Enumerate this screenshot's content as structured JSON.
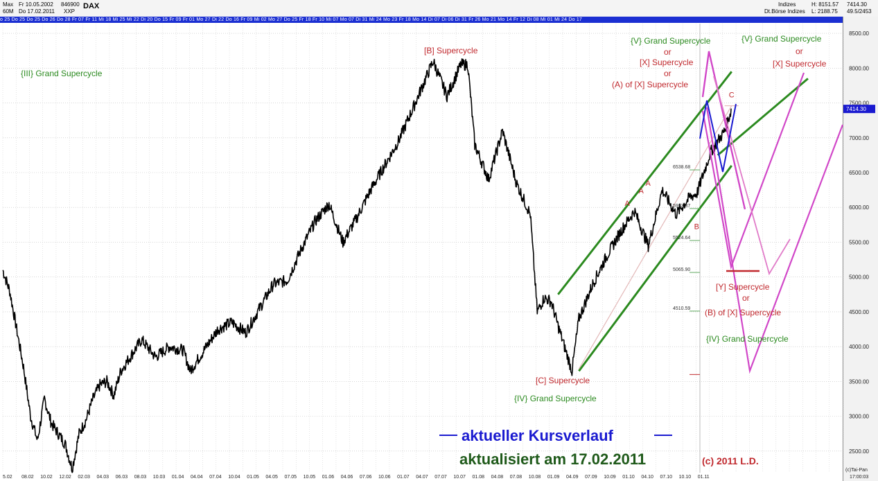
{
  "header": {
    "max_label": "Max",
    "max_date": "Fr 10.05.2002",
    "max_code": "846900",
    "symbol": "DAX",
    "period_label": "60M",
    "period_date": "Do 17.02.2011",
    "exchange_code": "XXP",
    "category": "Indizes",
    "exchange": "Dt.Börse Indizes",
    "high_label": "H: 8151.57",
    "low_label": "L: 2188.75",
    "last": "7414.30",
    "change": "49.5/2453"
  },
  "date_strip": "o 25 Do 25 Do 25 Do 26 Do 28 Fr 07 Fr 11 Mi 18 Mi 25 Mi 22 Di 20 Do 15 Fr 09 Fr 01 Mo 27 Di 22 Do 16 Fr 09 Mi 02 Mo 27 Do 25 Fr 18 Fr 10 Mi 07 Mo 07 Di 31 Mi 24 Mo 23 Fr 18 Mo 14 Di 07 Di 06 Di 31 Fr 26 Mo 21 Mo 14 Fr 12 Di 08 Mi 01 Mi 24 Do 17",
  "colors": {
    "price": "#000000",
    "channel": "#2b8a1f",
    "green_text": "#2b8a1f",
    "red_text": "#c0282d",
    "magenta": "#d147c8",
    "pink": "#e07ac8",
    "blue": "#1a1ad0",
    "date_strip_bg": "#1b2fd2",
    "last_price_box": "#1a1ad0"
  },
  "chart_data": {
    "type": "line",
    "title": "DAX",
    "ylim": [
      2190,
      8640
    ],
    "y_ticks": [
      2500,
      3000,
      3500,
      4000,
      4500,
      5000,
      5500,
      6000,
      6500,
      7000,
      7500,
      8000,
      8500
    ],
    "y_tick_labels": [
      "2500.00",
      "3000.00",
      "3500.00",
      "4000.00",
      "4500.00",
      "5000.00",
      "5500.00",
      "6000.00",
      "6500.00",
      "7000.00",
      "7500.00",
      "8000.00",
      "8500.00"
    ],
    "last_price": 7414.3,
    "last_price_label": "7414.30",
    "x_range": [
      "2002-05",
      "2012-06"
    ],
    "x_tick_labels": [
      "5.02",
      "08.02",
      "10.02",
      "12.02",
      "02.03",
      "04.03",
      "06.03",
      "08.03",
      "10.03",
      "01.04",
      "04.04",
      "07.04",
      "10.04",
      "01.05",
      "04.05",
      "07.05",
      "10.05",
      "01.06",
      "04.06",
      "07.06",
      "10.06",
      "01.07",
      "04.07",
      "07.07",
      "10.07",
      "01.08",
      "04.08",
      "07.08",
      "10.08",
      "01.09",
      "04.09",
      "07.09",
      "10.09",
      "01.10",
      "04.10",
      "07.10",
      "10.10",
      "01.11"
    ],
    "price_series": [
      [
        "2002-05",
        5100
      ],
      [
        "2002-06",
        4800
      ],
      [
        "2002-07",
        4250
      ],
      [
        "2002-08",
        3700
      ],
      [
        "2002-09",
        3000
      ],
      [
        "2002-10",
        2650
      ],
      [
        "2002-11",
        3250
      ],
      [
        "2002-12",
        2900
      ],
      [
        "2003-01",
        2750
      ],
      [
        "2003-02",
        2600
      ],
      [
        "2003-03",
        2250
      ],
      [
        "2003-04",
        2750
      ],
      [
        "2003-05",
        2950
      ],
      [
        "2003-06",
        3250
      ],
      [
        "2003-07",
        3450
      ],
      [
        "2003-08",
        3500
      ],
      [
        "2003-09",
        3300
      ],
      [
        "2003-10",
        3650
      ],
      [
        "2003-12",
        3950
      ],
      [
        "2004-01",
        4100
      ],
      [
        "2004-03",
        3850
      ],
      [
        "2004-05",
        4000
      ],
      [
        "2004-07",
        3950
      ],
      [
        "2004-08",
        3650
      ],
      [
        "2004-10",
        3950
      ],
      [
        "2004-12",
        4250
      ],
      [
        "2005-02",
        4350
      ],
      [
        "2005-04",
        4200
      ],
      [
        "2005-06",
        4550
      ],
      [
        "2005-08",
        4900
      ],
      [
        "2005-10",
        4950
      ],
      [
        "2005-12",
        5400
      ],
      [
        "2006-02",
        5800
      ],
      [
        "2006-04",
        6050
      ],
      [
        "2006-06",
        5500
      ],
      [
        "2006-08",
        5850
      ],
      [
        "2006-10",
        6250
      ],
      [
        "2006-12",
        6600
      ],
      [
        "2007-02",
        6950
      ],
      [
        "2007-04",
        7400
      ],
      [
        "2007-07",
        8100
      ],
      [
        "2007-09",
        7600
      ],
      [
        "2007-11",
        8050
      ],
      [
        "2007-12",
        8050
      ],
      [
        "2008-01",
        6900
      ],
      [
        "2008-03",
        6400
      ],
      [
        "2008-05",
        7100
      ],
      [
        "2008-07",
        6350
      ],
      [
        "2008-09",
        5900
      ],
      [
        "2008-10",
        4500
      ],
      [
        "2008-11",
        4700
      ],
      [
        "2008-12",
        4650
      ],
      [
        "2009-01",
        4300
      ],
      [
        "2009-03",
        3650
      ],
      [
        "2009-04",
        4400
      ],
      [
        "2009-06",
        4900
      ],
      [
        "2009-08",
        5300
      ],
      [
        "2009-10",
        5650
      ],
      [
        "2009-12",
        5950
      ],
      [
        "2010-02",
        5450
      ],
      [
        "2010-04",
        6250
      ],
      [
        "2010-06",
        5900
      ],
      [
        "2010-08",
        6150
      ],
      [
        "2010-09",
        6200
      ],
      [
        "2010-11",
        6800
      ],
      [
        "2011-01",
        7100
      ],
      [
        "2011-02",
        7414
      ]
    ],
    "level_labels": [
      {
        "value": 6538.68,
        "label": "6538.68"
      },
      {
        "value": 5983.37,
        "label": "5983.37"
      },
      {
        "value": 5524.64,
        "label": "5524.64"
      },
      {
        "value": 5065.9,
        "label": "5065.90"
      },
      {
        "value": 4510.59,
        "label": "4510.59"
      }
    ],
    "wave_points": [
      {
        "label": "A",
        "date": "2009-11",
        "value": 5980
      },
      {
        "label": "A",
        "date": "2010-01",
        "value": 6160
      },
      {
        "label": "A",
        "date": "2010-02",
        "value": 6270
      },
      {
        "label": "B",
        "date": "2010-09",
        "value": 5650
      },
      {
        "label": "C",
        "date": "2011-02",
        "value": 7540
      }
    ],
    "annotations": {
      "iii_grand": "{III} Grand Supercycle",
      "b_supercycle": "[B] Supercycle",
      "c_supercycle": "[C] Supercycle",
      "iv_grand_bottom": "{IV} Grand Supercycle",
      "v_block": [
        "{V} Grand Supercycle",
        "or",
        "[X] Supercycle",
        "or",
        "(A) of [X] Supercycle"
      ],
      "v_right": [
        "{V} Grand Supercycle",
        "or",
        "[X] Supercycle"
      ],
      "y_block": [
        "[Y] Supercycle",
        "or",
        "(B) of [X] Supercycle"
      ],
      "iv_grand_right": "{IV} Grand Supercycle",
      "copyright": "(c) 2011 L.D.",
      "kursverlauf": "aktueller Kursverlauf",
      "aktualisiert": "aktualisiert am 17.02.2011",
      "taipan": "(c)Tai-Pan",
      "clock": "17:00:03"
    }
  }
}
